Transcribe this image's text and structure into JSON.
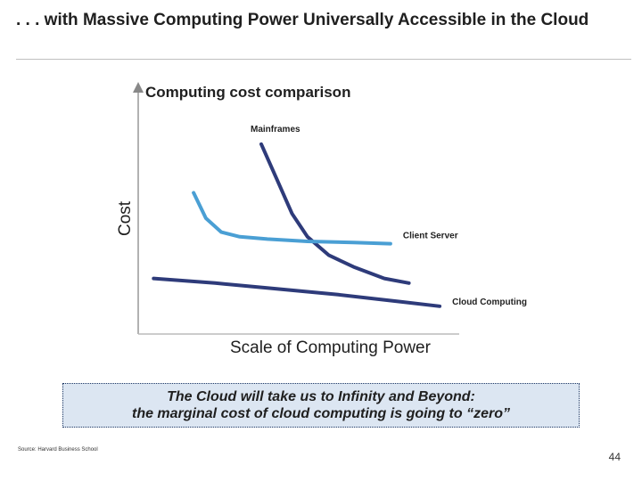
{
  "slide": {
    "title": ". . . with Massive Computing Power Universally Accessible in the Cloud",
    "callout_line1": "The Cloud will take us to Infinity and Beyond:",
    "callout_line2": "the marginal cost of cloud computing is going to “zero”",
    "source": "Source: Harvard Business School",
    "page_number": "44"
  },
  "chart_data": {
    "type": "line",
    "title": "Computing cost comparison",
    "xlabel": "Scale of Computing Power",
    "ylabel": "Cost",
    "xlim": [
      0,
      100
    ],
    "ylim": [
      0,
      100
    ],
    "grid": false,
    "series": [
      {
        "name": "Mainframes",
        "color": "#2e3b7a",
        "x": [
          40,
          45,
          50,
          55,
          62,
          70,
          80,
          88
        ],
        "y": [
          82,
          67,
          52,
          42,
          34,
          29,
          24,
          22
        ]
      },
      {
        "name": "Client Server",
        "color": "#4a9fd4",
        "x": [
          18,
          22,
          27,
          33,
          42,
          55,
          70,
          82
        ],
        "y": [
          61,
          50,
          44,
          42,
          41,
          40,
          39.5,
          39
        ]
      },
      {
        "name": "Cloud Computing",
        "color": "#2e3b7a",
        "x": [
          5,
          25,
          45,
          65,
          85,
          98
        ],
        "y": [
          24,
          22,
          19.5,
          17,
          14,
          12
        ]
      }
    ]
  }
}
